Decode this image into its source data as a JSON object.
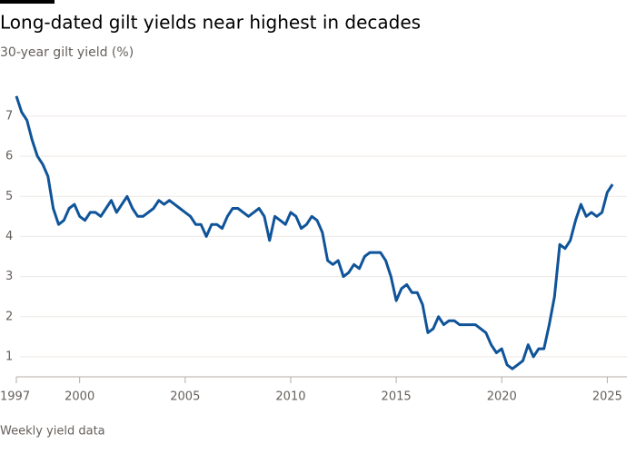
{
  "chart_data": {
    "type": "line",
    "title": "Long-dated gilt yields near highest in decades",
    "subtitle": "30-year gilt yield (%)",
    "source": "Weekly yield data",
    "x": [
      1997.0,
      1997.25,
      1997.5,
      1997.75,
      1998.0,
      1998.25,
      1998.5,
      1998.75,
      1999.0,
      1999.25,
      1999.5,
      1999.75,
      2000.0,
      2000.25,
      2000.5,
      2000.75,
      2001.0,
      2001.25,
      2001.5,
      2001.75,
      2002.0,
      2002.25,
      2002.5,
      2002.75,
      2003.0,
      2003.25,
      2003.5,
      2003.75,
      2004.0,
      2004.25,
      2004.5,
      2004.75,
      2005.0,
      2005.25,
      2005.5,
      2005.75,
      2006.0,
      2006.25,
      2006.5,
      2006.75,
      2007.0,
      2007.25,
      2007.5,
      2007.75,
      2008.0,
      2008.25,
      2008.5,
      2008.75,
      2009.0,
      2009.25,
      2009.5,
      2009.75,
      2010.0,
      2010.25,
      2010.5,
      2010.75,
      2011.0,
      2011.25,
      2011.5,
      2011.75,
      2012.0,
      2012.25,
      2012.5,
      2012.75,
      2013.0,
      2013.25,
      2013.5,
      2013.75,
      2014.0,
      2014.25,
      2014.5,
      2014.75,
      2015.0,
      2015.25,
      2015.5,
      2015.75,
      2016.0,
      2016.25,
      2016.5,
      2016.75,
      2017.0,
      2017.25,
      2017.5,
      2017.75,
      2018.0,
      2018.25,
      2018.5,
      2018.75,
      2019.0,
      2019.25,
      2019.5,
      2019.75,
      2020.0,
      2020.25,
      2020.5,
      2020.75,
      2021.0,
      2021.25,
      2021.5,
      2021.75,
      2022.0,
      2022.25,
      2022.5,
      2022.75,
      2023.0,
      2023.25,
      2023.5,
      2023.75,
      2024.0,
      2024.25,
      2024.5,
      2024.75,
      2025.0,
      2025.25
    ],
    "series": [
      {
        "name": "30-year gilt yield",
        "color": "#0f5499",
        "values": [
          7.5,
          7.1,
          6.9,
          6.4,
          6.0,
          5.8,
          5.5,
          4.7,
          4.3,
          4.4,
          4.7,
          4.8,
          4.5,
          4.4,
          4.6,
          4.6,
          4.5,
          4.7,
          4.9,
          4.6,
          4.8,
          5.0,
          4.7,
          4.5,
          4.5,
          4.6,
          4.7,
          4.9,
          4.8,
          4.9,
          4.8,
          4.7,
          4.6,
          4.5,
          4.3,
          4.3,
          4.0,
          4.3,
          4.3,
          4.2,
          4.5,
          4.7,
          4.7,
          4.6,
          4.5,
          4.6,
          4.7,
          4.5,
          3.9,
          4.5,
          4.4,
          4.3,
          4.6,
          4.5,
          4.2,
          4.3,
          4.5,
          4.4,
          4.1,
          3.4,
          3.3,
          3.4,
          3.0,
          3.1,
          3.3,
          3.2,
          3.5,
          3.6,
          3.6,
          3.6,
          3.4,
          3.0,
          2.4,
          2.7,
          2.8,
          2.6,
          2.6,
          2.3,
          1.6,
          1.7,
          2.0,
          1.8,
          1.9,
          1.9,
          1.8,
          1.8,
          1.8,
          1.8,
          1.7,
          1.6,
          1.3,
          1.1,
          1.2,
          0.8,
          0.7,
          0.8,
          0.9,
          1.3,
          1.0,
          1.2,
          1.2,
          1.8,
          2.5,
          3.8,
          3.7,
          3.9,
          4.4,
          4.8,
          4.5,
          4.6,
          4.5,
          4.6,
          5.1,
          5.3
        ]
      }
    ],
    "xlim": [
      1997,
      2025.5
    ],
    "xticks": [
      1997,
      2000,
      2005,
      2010,
      2015,
      2020,
      2025
    ],
    "ylim": [
      0.5,
      7.7
    ],
    "yticks": [
      1,
      2,
      3,
      4,
      5,
      6,
      7
    ],
    "grid": true
  }
}
